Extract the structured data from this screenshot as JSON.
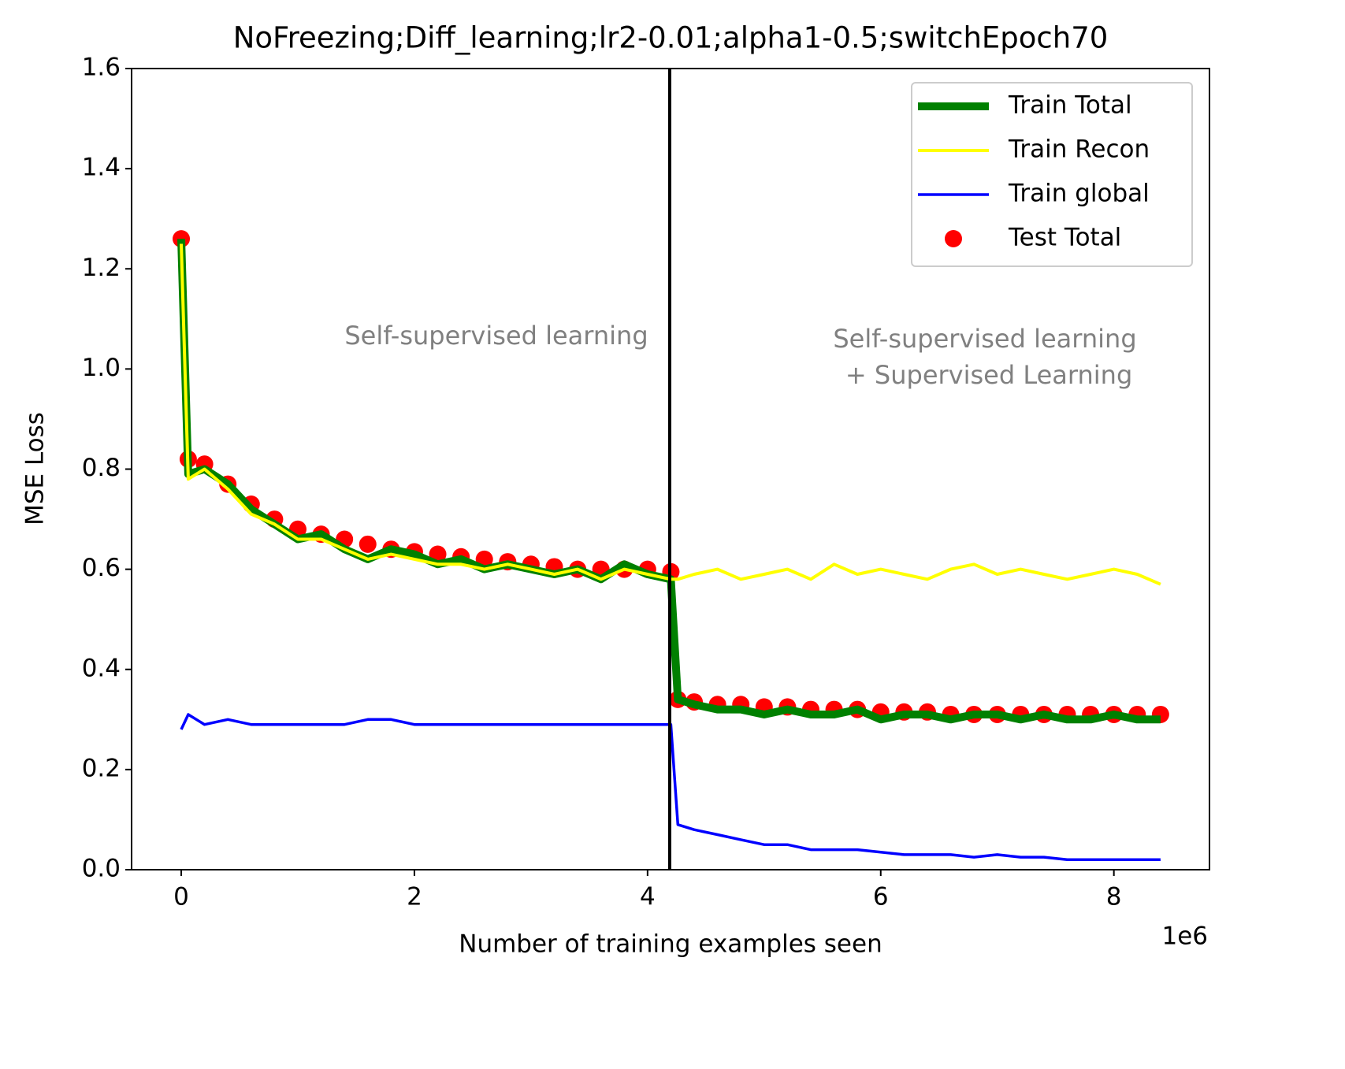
{
  "chart_data": {
    "type": "line",
    "title": "NoFreezing;Diff_learning;lr2-0.01;alpha1-0.5;switchEpoch70",
    "xlabel": "Number of training examples seen",
    "ylabel": "MSE Loss",
    "x_offset_label": "1e6",
    "xlim": [
      -0.426,
      8.82
    ],
    "ylim": [
      0,
      1.6
    ],
    "xticks": [
      0,
      2,
      4,
      6,
      8
    ],
    "yticks": [
      {
        "value": 0,
        "label": "0.0"
      },
      0.2,
      0.4,
      0.6,
      0.8,
      {
        "value": 1,
        "label": "1.0"
      },
      1.2,
      1.4,
      1.6
    ],
    "grid": false,
    "legend": "upper right",
    "vline": 4.19,
    "vline_color": "#000000",
    "annotations": [
      "Self-supervised learning",
      "Self-supervised learning",
      " + Supervised Learning"
    ],
    "x": [
      0,
      0.06,
      0.2,
      0.4,
      0.6,
      0.8,
      1.0,
      1.2,
      1.4,
      1.6,
      1.8,
      2.0,
      2.2,
      2.4,
      2.6,
      2.8,
      3.0,
      3.2,
      3.4,
      3.6,
      3.8,
      4.0,
      4.2,
      4.26,
      4.4,
      4.6,
      4.8,
      5.0,
      5.2,
      5.4,
      5.6,
      5.8,
      6.0,
      6.2,
      6.4,
      6.6,
      6.8,
      7.0,
      7.2,
      7.4,
      7.6,
      7.8,
      8.0,
      8.2,
      8.4
    ],
    "series": [
      {
        "name": "Train Total",
        "color": "#008000",
        "style": "line",
        "width": 10,
        "values": [
          1.26,
          0.79,
          0.8,
          0.77,
          0.72,
          0.69,
          0.66,
          0.67,
          0.64,
          0.62,
          0.64,
          0.63,
          0.61,
          0.62,
          0.6,
          0.61,
          0.6,
          0.59,
          0.6,
          0.58,
          0.61,
          0.59,
          0.58,
          0.34,
          0.33,
          0.32,
          0.32,
          0.31,
          0.32,
          0.31,
          0.31,
          0.32,
          0.3,
          0.31,
          0.31,
          0.3,
          0.31,
          0.31,
          0.3,
          0.31,
          0.3,
          0.3,
          0.31,
          0.3,
          0.3
        ]
      },
      {
        "name": "Train Recon",
        "color": "#ffff00",
        "style": "line",
        "width": 4,
        "values": [
          1.25,
          0.78,
          0.8,
          0.76,
          0.71,
          0.69,
          0.66,
          0.66,
          0.64,
          0.62,
          0.63,
          0.62,
          0.61,
          0.61,
          0.6,
          0.61,
          0.6,
          0.59,
          0.6,
          0.58,
          0.6,
          0.59,
          0.58,
          0.58,
          0.59,
          0.6,
          0.58,
          0.59,
          0.6,
          0.58,
          0.61,
          0.59,
          0.6,
          0.59,
          0.58,
          0.6,
          0.61,
          0.59,
          0.6,
          0.59,
          0.58,
          0.59,
          0.6,
          0.59,
          0.57
        ]
      },
      {
        "name": "Train global",
        "color": "#0000ff",
        "style": "line",
        "width": 3.5,
        "values": [
          0.28,
          0.31,
          0.29,
          0.3,
          0.29,
          0.29,
          0.29,
          0.29,
          0.29,
          0.3,
          0.3,
          0.29,
          0.29,
          0.29,
          0.29,
          0.29,
          0.29,
          0.29,
          0.29,
          0.29,
          0.29,
          0.29,
          0.29,
          0.09,
          0.08,
          0.07,
          0.06,
          0.05,
          0.05,
          0.04,
          0.04,
          0.04,
          0.035,
          0.03,
          0.03,
          0.03,
          0.025,
          0.03,
          0.025,
          0.025,
          0.02,
          0.02,
          0.02,
          0.02,
          0.02
        ]
      },
      {
        "name": "Test Total",
        "color": "#ff0000",
        "style": "scatter",
        "values": [
          1.26,
          0.82,
          0.81,
          0.77,
          0.73,
          0.7,
          0.68,
          0.67,
          0.66,
          0.65,
          0.64,
          0.635,
          0.63,
          0.625,
          0.62,
          0.615,
          0.61,
          0.605,
          0.6,
          0.6,
          0.6,
          0.6,
          0.595,
          0.34,
          0.335,
          0.33,
          0.33,
          0.325,
          0.325,
          0.32,
          0.32,
          0.32,
          0.315,
          0.315,
          0.315,
          0.31,
          0.31,
          0.31,
          0.31,
          0.31,
          0.31,
          0.31,
          0.31,
          0.31,
          0.31
        ]
      }
    ]
  }
}
